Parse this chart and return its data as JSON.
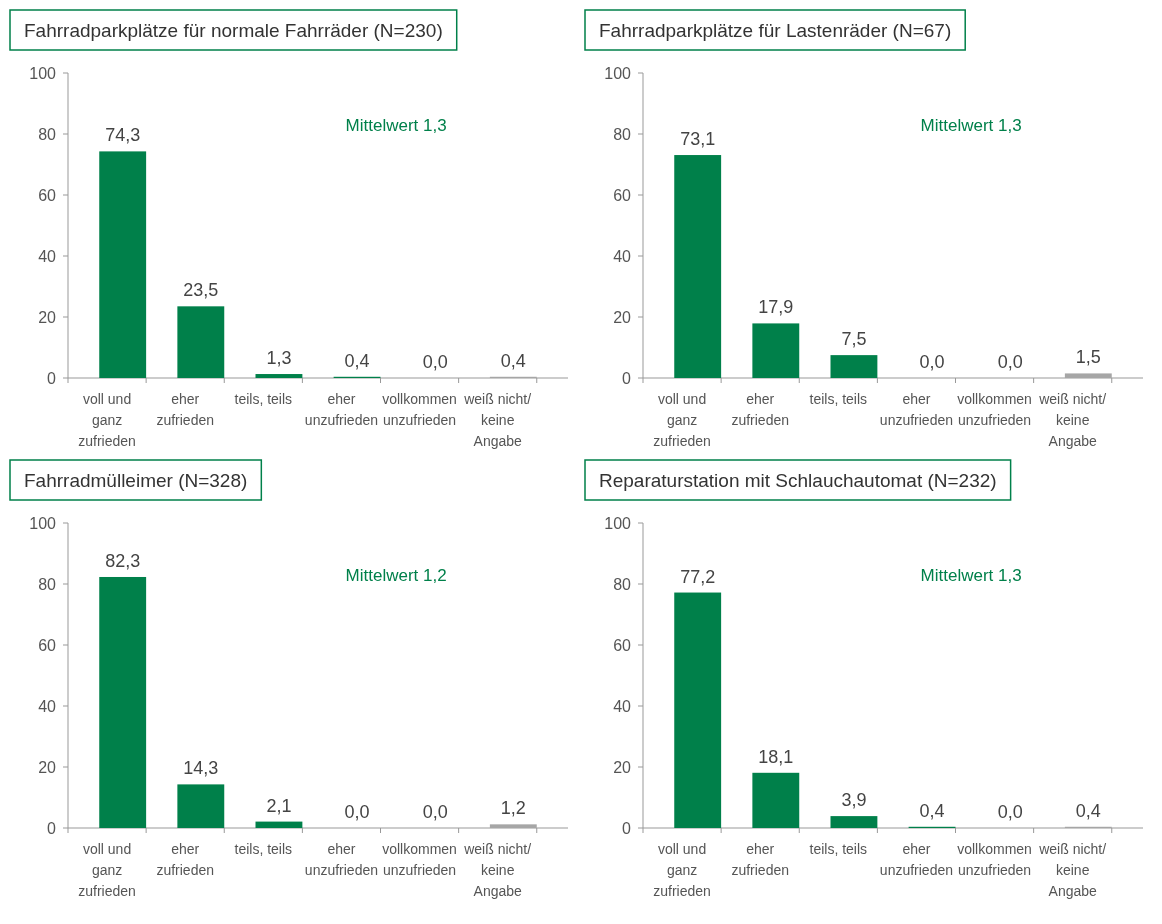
{
  "chart_data": [
    {
      "type": "bar",
      "title": "Fahrradparkplätze für normale Fahrräder (N=230)",
      "categories": [
        "voll und ganz zufrieden",
        "eher zufrieden",
        "teils, teils",
        "eher unzufrieden",
        "vollkommen unzufrieden",
        "weiß nicht/ keine Angabe"
      ],
      "values": [
        74.3,
        23.5,
        1.3,
        0.4,
        0.0,
        0.4
      ],
      "value_labels": [
        "74,3",
        "23,5",
        "1,3",
        "0,4",
        "0,0",
        "0,4"
      ],
      "colors": [
        "#00804a",
        "#00804a",
        "#00804a",
        "#00804a",
        "#00804a",
        "#a6a6a6"
      ],
      "ylim": [
        0,
        100
      ],
      "yticks": [
        0,
        20,
        40,
        60,
        80,
        100
      ],
      "annotations": [
        "Mittelwert 1,3"
      ]
    },
    {
      "type": "bar",
      "title": "Fahrradparkplätze für Lastenräder (N=67)",
      "categories": [
        "voll und ganz zufrieden",
        "eher zufrieden",
        "teils, teils",
        "eher unzufrieden",
        "vollkommen unzufrieden",
        "weiß nicht/ keine Angabe"
      ],
      "values": [
        73.1,
        17.9,
        7.5,
        0.0,
        0.0,
        1.5
      ],
      "value_labels": [
        "73,1",
        "17,9",
        "7,5",
        "0,0",
        "0,0",
        "1,5"
      ],
      "colors": [
        "#00804a",
        "#00804a",
        "#00804a",
        "#00804a",
        "#00804a",
        "#a6a6a6"
      ],
      "ylim": [
        0,
        100
      ],
      "yticks": [
        0,
        20,
        40,
        60,
        80,
        100
      ],
      "annotations": [
        "Mittelwert 1,3"
      ]
    },
    {
      "type": "bar",
      "title": "Fahrradmülleimer (N=328)",
      "categories": [
        "voll und ganz zufrieden",
        "eher zufrieden",
        "teils, teils",
        "eher unzufrieden",
        "vollkommen unzufrieden",
        "weiß nicht/ keine Angabe"
      ],
      "values": [
        82.3,
        14.3,
        2.1,
        0.0,
        0.0,
        1.2
      ],
      "value_labels": [
        "82,3",
        "14,3",
        "2,1",
        "0,0",
        "0,0",
        "1,2"
      ],
      "colors": [
        "#00804a",
        "#00804a",
        "#00804a",
        "#00804a",
        "#00804a",
        "#a6a6a6"
      ],
      "ylim": [
        0,
        100
      ],
      "yticks": [
        0,
        20,
        40,
        60,
        80,
        100
      ],
      "annotations": [
        "Mittelwert 1,2"
      ]
    },
    {
      "type": "bar",
      "title": "Reparaturstation mit Schlauchautomat (N=232)",
      "categories": [
        "voll und ganz zufrieden",
        "eher zufrieden",
        "teils, teils",
        "eher unzufrieden",
        "vollkommen unzufrieden",
        "weiß nicht/ keine Angabe"
      ],
      "values": [
        77.2,
        18.1,
        3.9,
        0.4,
        0.0,
        0.4
      ],
      "value_labels": [
        "77,2",
        "18,1",
        "3,9",
        "0,4",
        "0,0",
        "0,4"
      ],
      "colors": [
        "#00804a",
        "#00804a",
        "#00804a",
        "#00804a",
        "#00804a",
        "#a6a6a6"
      ],
      "ylim": [
        0,
        100
      ],
      "yticks": [
        0,
        20,
        40,
        60,
        80,
        100
      ],
      "annotations": [
        "Mittelwert 1,3"
      ]
    }
  ]
}
